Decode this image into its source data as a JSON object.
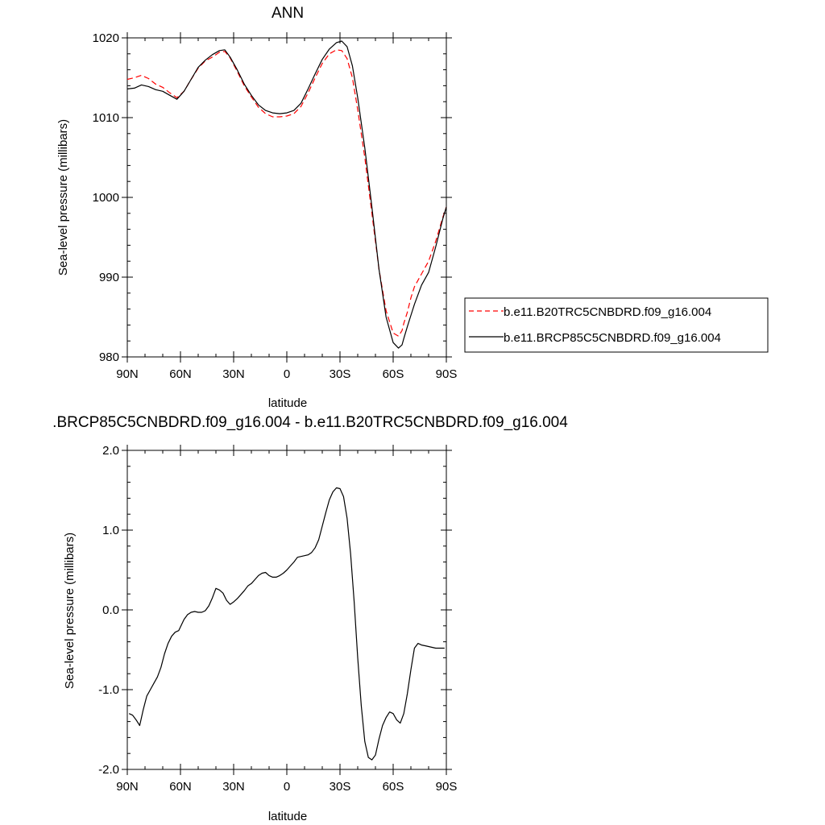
{
  "chart_data": [
    {
      "type": "line",
      "title": "ANN",
      "xlabel": "latitude",
      "ylabel": "Sea-level pressure (millibars)",
      "xlim": [
        90,
        -90
      ],
      "ylim": [
        980,
        1020
      ],
      "x_tick_values": [
        90,
        60,
        30,
        0,
        -30,
        -60,
        -90
      ],
      "x_tick_labels": [
        "90N",
        "60N",
        "30N",
        "0",
        "30S",
        "60S",
        "90S"
      ],
      "y_tick_values": [
        980,
        990,
        1000,
        1010,
        1020
      ],
      "y_tick_labels": [
        "980",
        "990",
        "1000",
        "1010",
        "1020"
      ],
      "grid": false,
      "legend_position": "right",
      "series": [
        {
          "name": "b.e11.B20TRC5CNBDRD.f09_g16.004",
          "color": "#ff0000",
          "dash": "dashed",
          "x": [
            90,
            86,
            82,
            78,
            74,
            70,
            66,
            62,
            58,
            54,
            50,
            46,
            42,
            38,
            35,
            32,
            28,
            24,
            20,
            16,
            12,
            8,
            4,
            0,
            -4,
            -8,
            -12,
            -16,
            -20,
            -24,
            -28,
            -31,
            -34,
            -37,
            -40,
            -44,
            -48,
            -52,
            -56,
            -60,
            -63,
            -65,
            -66,
            -68,
            -70,
            -72,
            -76,
            -80,
            -84,
            -88,
            -90
          ],
          "y": [
            1014.8,
            1015.0,
            1015.3,
            1014.9,
            1014.2,
            1013.8,
            1013.1,
            1012.5,
            1013.3,
            1014.8,
            1016.2,
            1017.1,
            1017.6,
            1018.2,
            1018.3,
            1017.5,
            1015.8,
            1014.0,
            1012.6,
            1011.3,
            1010.5,
            1010.1,
            1010.1,
            1010.2,
            1010.5,
            1011.4,
            1013.1,
            1015.0,
            1016.8,
            1018.0,
            1018.5,
            1018.4,
            1017.4,
            1015.0,
            1011.0,
            1005.0,
            998.0,
            991.0,
            985.8,
            983.0,
            982.6,
            983.3,
            984.2,
            985.6,
            987.4,
            988.8,
            990.4,
            992.0,
            994.5,
            997.5,
            998.8
          ]
        },
        {
          "name": "b.e11.BRCP85C5CNBDRD.f09_g16.004",
          "color": "#000000",
          "dash": "solid",
          "x": [
            90,
            86,
            82,
            78,
            74,
            70,
            66,
            62,
            58,
            54,
            50,
            46,
            42,
            38,
            35,
            32,
            28,
            24,
            20,
            16,
            12,
            8,
            4,
            0,
            -4,
            -8,
            -12,
            -16,
            -20,
            -24,
            -28,
            -31,
            -34,
            -37,
            -40,
            -44,
            -48,
            -52,
            -56,
            -60,
            -63,
            -65,
            -66,
            -68,
            -70,
            -72,
            -76,
            -80,
            -84,
            -88,
            -90
          ],
          "y": [
            1013.6,
            1013.7,
            1014.1,
            1013.9,
            1013.5,
            1013.3,
            1012.8,
            1012.3,
            1013.3,
            1014.8,
            1016.3,
            1017.2,
            1017.9,
            1018.4,
            1018.5,
            1017.6,
            1016.0,
            1014.2,
            1012.8,
            1011.6,
            1010.9,
            1010.6,
            1010.5,
            1010.6,
            1010.9,
            1011.8,
            1013.6,
            1015.5,
            1017.3,
            1018.6,
            1019.4,
            1019.6,
            1018.9,
            1016.5,
            1012.5,
            1006.2,
            998.8,
            991.0,
            985.0,
            981.8,
            981.1,
            981.5,
            982.3,
            983.8,
            985.2,
            986.6,
            989.0,
            990.6,
            993.8,
            997.3,
            998.8
          ]
        }
      ]
    },
    {
      "type": "line",
      "title": ".BRCP85C5CNBDRD.f09_g16.004 - b.e11.B20TRC5CNBDRD.f09_g16.004",
      "xlabel": "latitude",
      "ylabel": "Sea-level pressure (millibars)",
      "xlim": [
        90,
        -90
      ],
      "ylim": [
        -2.0,
        2.0
      ],
      "x_tick_values": [
        90,
        60,
        30,
        0,
        -30,
        -60,
        -90
      ],
      "x_tick_labels": [
        "90N",
        "60N",
        "30N",
        "0",
        "30S",
        "60S",
        "90S"
      ],
      "y_tick_values": [
        -2.0,
        -1.0,
        0.0,
        1.0,
        2.0
      ],
      "y_tick_labels": [
        "-2.0",
        "-1.0",
        "0.0",
        "1.0",
        "2.0"
      ],
      "grid": false,
      "series": [
        {
          "color": "#000000",
          "dash": "solid",
          "x": [
            89,
            87,
            85,
            83,
            81,
            79,
            77,
            75,
            73,
            71,
            69,
            67,
            65,
            63,
            61,
            58,
            56,
            54,
            52,
            50,
            48,
            46,
            44,
            42,
            40,
            38,
            36,
            34,
            32,
            30,
            28,
            26,
            24,
            22,
            20,
            18,
            16,
            14,
            12,
            10,
            8,
            6,
            4,
            2,
            0,
            -2,
            -4,
            -6,
            -8,
            -10,
            -12,
            -14,
            -16,
            -18,
            -20,
            -22,
            -24,
            -26,
            -28,
            -30,
            -32,
            -34,
            -36,
            -38,
            -40,
            -42,
            -44,
            -46,
            -48,
            -50,
            -52,
            -54,
            -56,
            -58,
            -60,
            -62,
            -64,
            -66,
            -68,
            -70,
            -72,
            -74,
            -76,
            -78,
            -80,
            -82,
            -84,
            -86,
            -88,
            -89
          ],
          "y": [
            -1.3,
            -1.32,
            -1.38,
            -1.45,
            -1.25,
            -1.08,
            -1.0,
            -0.92,
            -0.84,
            -0.72,
            -0.55,
            -0.42,
            -0.33,
            -0.28,
            -0.26,
            -0.12,
            -0.06,
            -0.03,
            -0.02,
            -0.03,
            -0.03,
            -0.01,
            0.05,
            0.15,
            0.27,
            0.25,
            0.21,
            0.12,
            0.07,
            0.1,
            0.14,
            0.19,
            0.24,
            0.3,
            0.33,
            0.38,
            0.43,
            0.46,
            0.47,
            0.43,
            0.41,
            0.41,
            0.43,
            0.46,
            0.5,
            0.55,
            0.6,
            0.66,
            0.67,
            0.68,
            0.69,
            0.72,
            0.78,
            0.88,
            1.05,
            1.22,
            1.38,
            1.48,
            1.53,
            1.52,
            1.42,
            1.15,
            0.7,
            0.1,
            -0.6,
            -1.2,
            -1.65,
            -1.85,
            -1.88,
            -1.82,
            -1.62,
            -1.45,
            -1.35,
            -1.28,
            -1.3,
            -1.38,
            -1.42,
            -1.3,
            -1.05,
            -0.75,
            -0.48,
            -0.42,
            -0.44,
            -0.45,
            -0.46,
            -0.47,
            -0.48,
            -0.48,
            -0.48,
            -0.48
          ]
        }
      ]
    }
  ]
}
